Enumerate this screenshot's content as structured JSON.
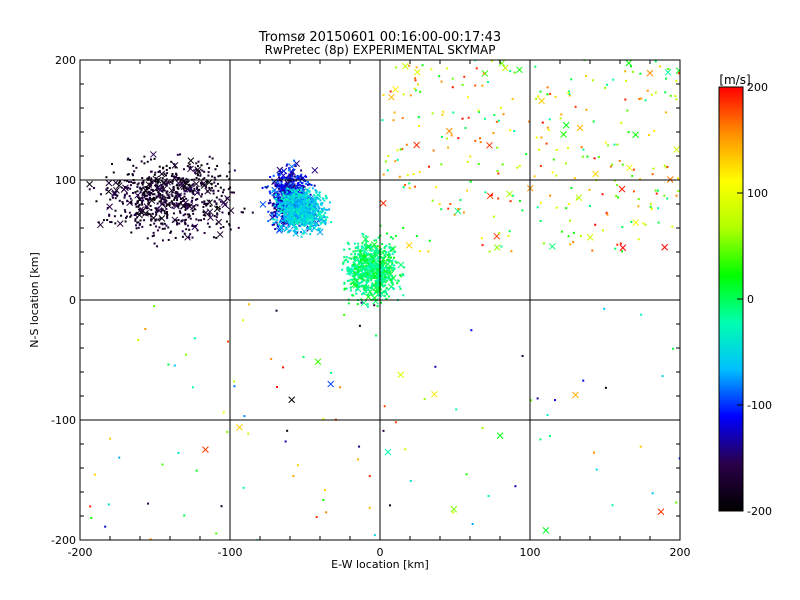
{
  "chart_data": {
    "type": "scatter",
    "title": "Tromsø 20150601 00:16:00-00:17:43",
    "subtitle": "RwPretec (8p) EXPERIMENTAL SKYMAP",
    "xlabel": "E-W location [km]",
    "ylabel": "N-S location [km]",
    "xlim": [
      -200,
      200
    ],
    "ylim": [
      -200,
      200
    ],
    "x_ticks": [
      -200,
      -100,
      0,
      100,
      200
    ],
    "y_ticks": [
      -200,
      -100,
      0,
      100,
      200
    ],
    "x_ticklabels": [
      "-200",
      "-100",
      "0",
      "100",
      "200"
    ],
    "y_ticklabels": [
      "-200",
      "-100",
      "0",
      "100",
      "200"
    ],
    "grid": true,
    "colorbar": {
      "unit": "[m/s]",
      "range": [
        -200,
        200
      ],
      "ticks": [
        200,
        100,
        0,
        -100,
        -200
      ],
      "ticklabels": [
        "200",
        "100",
        "0",
        "-100",
        "-200"
      ],
      "placement": "right",
      "colors": [
        "#000000",
        "#2a0048",
        "#0000ff",
        "#00bfff",
        "#00ffb0",
        "#00ff00",
        "#b0ff00",
        "#ffff00",
        "#ff9000",
        "#ff0000"
      ]
    },
    "markers": {
      "small": "dot",
      "large": "x"
    },
    "clusters": [
      {
        "region": "west dense",
        "x_range": [
          -200,
          -80
        ],
        "y_range": [
          40,
          130
        ],
        "velocity_range": [
          -200,
          -150
        ],
        "density": "high"
      },
      {
        "region": "central-west",
        "x_range": [
          -80,
          -40
        ],
        "y_range": [
          50,
          120
        ],
        "velocity_range": [
          -150,
          -80
        ],
        "density": "high"
      },
      {
        "region": "north-central cyan",
        "x_range": [
          -75,
          -30
        ],
        "y_range": [
          50,
          100
        ],
        "velocity_range": [
          -80,
          -20
        ],
        "density": "high"
      },
      {
        "region": "central cyan column",
        "x_range": [
          -30,
          20
        ],
        "y_range": [
          -10,
          60
        ],
        "velocity_range": [
          -30,
          20
        ],
        "density": "high"
      },
      {
        "region": "north-east",
        "x_range": [
          0,
          200
        ],
        "y_range": [
          40,
          200
        ],
        "velocity_range": [
          -20,
          200
        ],
        "density": "medium"
      },
      {
        "region": "south sparse",
        "x_range": [
          -200,
          200
        ],
        "y_range": [
          -200,
          0
        ],
        "velocity_range": [
          -200,
          200
        ],
        "density": "low"
      }
    ]
  }
}
